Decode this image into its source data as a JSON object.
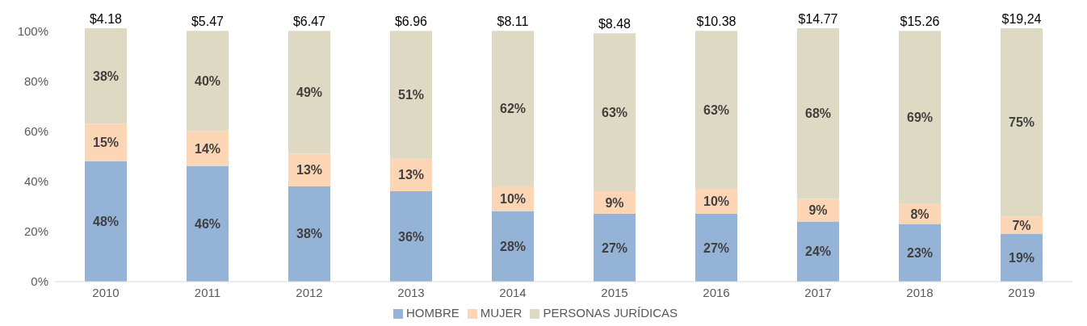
{
  "chart_data": {
    "type": "bar",
    "stacked": true,
    "categories": [
      "2010",
      "2011",
      "2012",
      "2013",
      "2014",
      "2015",
      "2016",
      "2017",
      "2018",
      "2019"
    ],
    "series": [
      {
        "name": "HOMBRE",
        "color": "#95b3d7",
        "values": [
          48,
          46,
          38,
          36,
          28,
          27,
          27,
          24,
          23,
          19
        ],
        "value_labels": [
          "48%",
          "46%",
          "38%",
          "36%",
          "28%",
          "27%",
          "27%",
          "24%",
          "23%",
          "19%"
        ]
      },
      {
        "name": "MUJER",
        "color": "#fcd5b5",
        "values": [
          15,
          14,
          13,
          13,
          10,
          9,
          10,
          9,
          8,
          7
        ],
        "value_labels": [
          "15%",
          "14%",
          "13%",
          "13%",
          "10%",
          "9%",
          "10%",
          "9%",
          "8%",
          "7%"
        ]
      },
      {
        "name": "PERSONAS JURÍDICAS",
        "color": "#ddd9c3",
        "values": [
          38,
          40,
          49,
          51,
          62,
          63,
          63,
          68,
          69,
          75
        ],
        "value_labels": [
          "38%",
          "40%",
          "49%",
          "51%",
          "62%",
          "63%",
          "63%",
          "68%",
          "69%",
          "75%"
        ]
      }
    ],
    "annotations": [
      {
        "text": "$4.18",
        "x": "2010",
        "y": 101
      },
      {
        "text": "$5.47",
        "x": "2011",
        "y": 100
      },
      {
        "text": "$6.47",
        "x": "2012",
        "y": 100
      },
      {
        "text": "$6.96",
        "x": "2013",
        "y": 100
      },
      {
        "text": "$8.11",
        "x": "2014",
        "y": 100
      },
      {
        "text": "$8.48",
        "x": "2015",
        "y": 99
      },
      {
        "text": "$10.38",
        "x": "2016",
        "y": 100
      },
      {
        "text": "$14.77",
        "x": "2017",
        "y": 101
      },
      {
        "text": "$15.26",
        "x": "2018",
        "y": 100
      },
      {
        "text": "$19,24",
        "x": "2019",
        "y": 101
      }
    ],
    "ylim": [
      0,
      102
    ],
    "yticks": [
      {
        "value": 0,
        "label": "0%"
      },
      {
        "value": 20,
        "label": "20%"
      },
      {
        "value": 40,
        "label": "40%"
      },
      {
        "value": 60,
        "label": "60%"
      },
      {
        "value": 80,
        "label": "80%"
      },
      {
        "value": 100,
        "label": "100%"
      }
    ],
    "grid": false,
    "legend": "bottom"
  }
}
